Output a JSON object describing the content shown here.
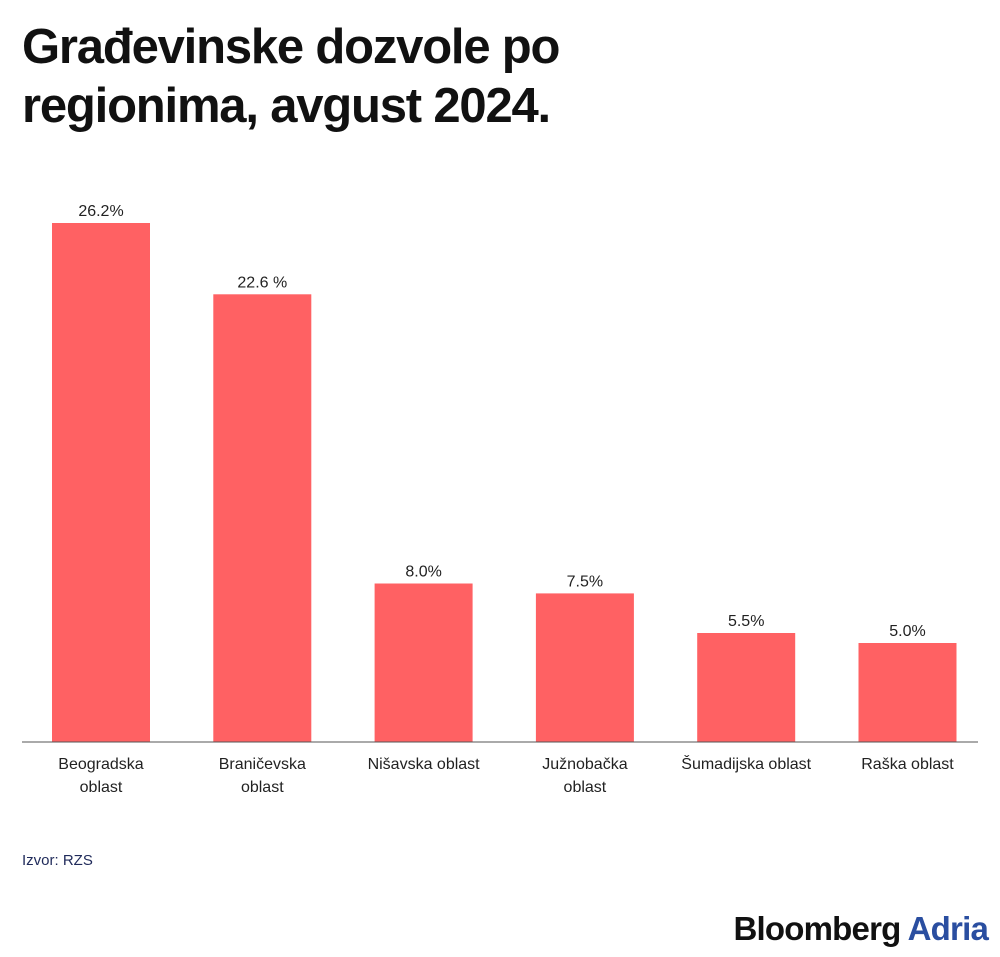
{
  "chart_data": {
    "type": "bar",
    "title_lines": [
      "Građevinske dozvole po",
      "regionima, avgust 2024."
    ],
    "categories": [
      [
        "Beogradska",
        "oblast"
      ],
      [
        "Braničevska",
        "oblast"
      ],
      [
        "Nišavska oblast"
      ],
      [
        "Južnobačka",
        "oblast"
      ],
      [
        "Šumadijska oblast"
      ],
      [
        "Raška oblast"
      ]
    ],
    "values": [
      26.2,
      22.6,
      8.0,
      7.5,
      5.5,
      5.0
    ],
    "value_labels": [
      "26.2%",
      "22.6 %",
      "8.0%",
      "7.5%",
      "5.5%",
      "5.0%"
    ],
    "ylim": [
      0,
      26.2
    ],
    "grid": false,
    "bar_color": "#ff6163",
    "axis_color": "#555555",
    "xlabel": "",
    "ylabel": ""
  },
  "source": "Izvor: RZS",
  "logo": {
    "main": "Bloomberg",
    "accent": "Adria",
    "accent_color": "#2a4ea0"
  }
}
